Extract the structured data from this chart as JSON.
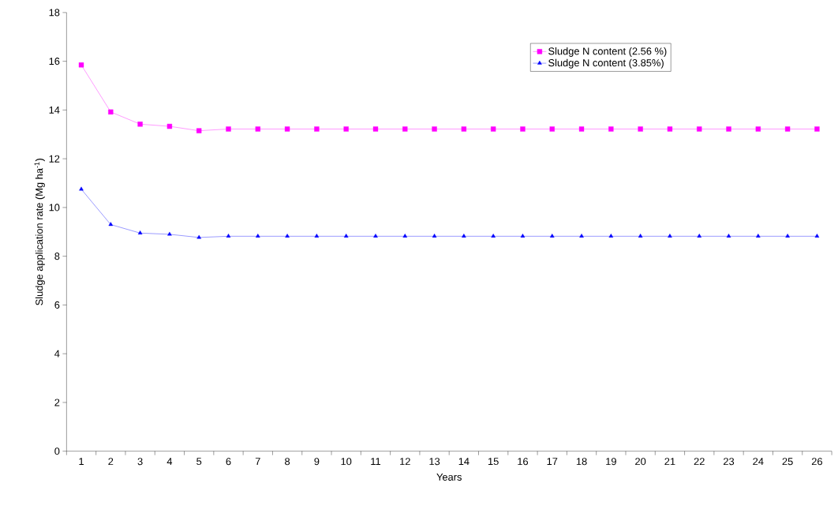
{
  "chart_data": {
    "type": "line",
    "xlabel": "Years",
    "ylabel": "Sludge application rate (Mg ha$^{-1}$)",
    "categories": [
      "1",
      "2",
      "3",
      "4",
      "5",
      "6",
      "7",
      "8",
      "9",
      "10",
      "11",
      "12",
      "13",
      "14",
      "15",
      "16",
      "17",
      "18",
      "19",
      "20",
      "21",
      "22",
      "23",
      "24",
      "25",
      "26"
    ],
    "series": [
      {
        "name": "Sludge N content (2.56 %)",
        "color": "#ff00ff",
        "marker": "square",
        "values": [
          15.85,
          13.92,
          13.42,
          13.33,
          13.15,
          13.22,
          13.22,
          13.22,
          13.22,
          13.22,
          13.22,
          13.22,
          13.22,
          13.22,
          13.22,
          13.22,
          13.22,
          13.22,
          13.22,
          13.22,
          13.22,
          13.22,
          13.22,
          13.22,
          13.22,
          13.22
        ]
      },
      {
        "name": "Sludge N content (3.85%)",
        "color": "#0000ff",
        "marker": "triangle",
        "values": [
          10.75,
          9.3,
          8.95,
          8.9,
          8.77,
          8.82,
          8.82,
          8.82,
          8.82,
          8.82,
          8.82,
          8.82,
          8.82,
          8.82,
          8.82,
          8.82,
          8.82,
          8.82,
          8.82,
          8.82,
          8.82,
          8.82,
          8.82,
          8.82,
          8.82,
          8.82
        ]
      }
    ],
    "ylim": [
      0,
      18
    ],
    "yticks": [
      0,
      2,
      4,
      6,
      8,
      10,
      12,
      14,
      16,
      18
    ],
    "grid": false,
    "legend": "top right",
    "line_style": "solid"
  }
}
